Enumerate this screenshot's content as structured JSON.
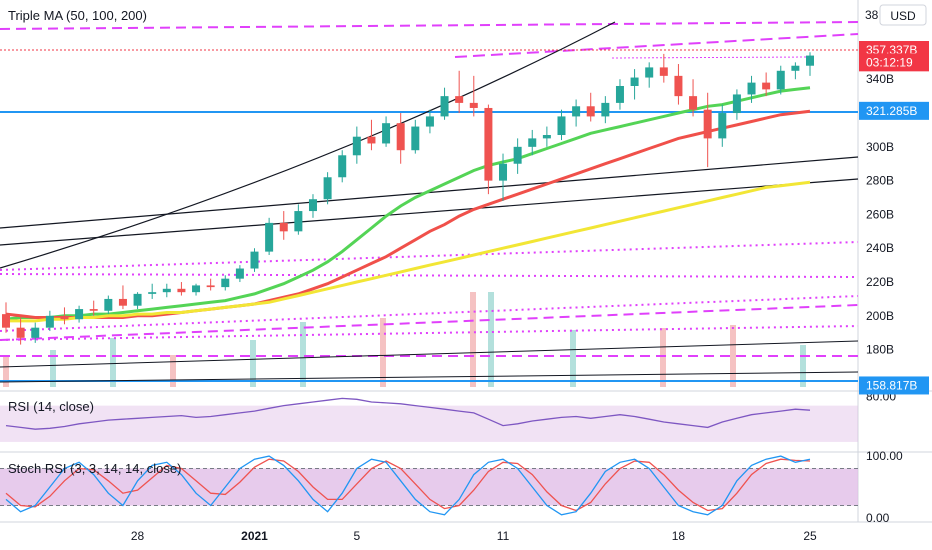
{
  "chart_data": {
    "type": "candlestick",
    "main_pane": {
      "title": "Triple MA (50, 100, 200)",
      "currency": "USD",
      "y_ticks": [
        "340B",
        "300B",
        "280B",
        "260B",
        "240B",
        "220B",
        "200B",
        "180B"
      ],
      "y_tick_values": [
        340,
        300,
        280,
        260,
        240,
        220,
        200,
        180
      ],
      "price_tags": [
        {
          "label": "357.337B",
          "value": 357.3,
          "color": "#f23645"
        },
        {
          "label": "03:12:19",
          "value": 350.0,
          "color": "#f23645"
        },
        {
          "label": "321.285B",
          "value": 321.3,
          "color": "#2196f3"
        },
        {
          "label": "158.817B",
          "value": 158.8,
          "color": "#2196f3"
        }
      ],
      "ylim": [
        157,
        380
      ],
      "top_label_partial": "38",
      "candles": [
        {
          "o": 201,
          "h": 208,
          "l": 190,
          "c": 193
        },
        {
          "o": 193,
          "h": 199,
          "l": 183,
          "c": 187
        },
        {
          "o": 187,
          "h": 196,
          "l": 184,
          "c": 193
        },
        {
          "o": 193,
          "h": 203,
          "l": 191,
          "c": 200
        },
        {
          "o": 200,
          "h": 205,
          "l": 195,
          "c": 198
        },
        {
          "o": 198,
          "h": 206,
          "l": 196,
          "c": 204
        },
        {
          "o": 204,
          "h": 209,
          "l": 200,
          "c": 203
        },
        {
          "o": 203,
          "h": 212,
          "l": 201,
          "c": 210
        },
        {
          "o": 210,
          "h": 218,
          "l": 204,
          "c": 206
        },
        {
          "o": 206,
          "h": 214,
          "l": 204,
          "c": 213
        },
        {
          "o": 213,
          "h": 219,
          "l": 210,
          "c": 214
        },
        {
          "o": 214,
          "h": 219,
          "l": 211,
          "c": 216
        },
        {
          "o": 216,
          "h": 220,
          "l": 212,
          "c": 214
        },
        {
          "o": 214,
          "h": 219,
          "l": 212,
          "c": 218
        },
        {
          "o": 218,
          "h": 222,
          "l": 215,
          "c": 217
        },
        {
          "o": 217,
          "h": 224,
          "l": 215,
          "c": 222
        },
        {
          "o": 222,
          "h": 230,
          "l": 220,
          "c": 228
        },
        {
          "o": 228,
          "h": 240,
          "l": 226,
          "c": 238
        },
        {
          "o": 238,
          "h": 258,
          "l": 236,
          "c": 255
        },
        {
          "o": 255,
          "h": 262,
          "l": 245,
          "c": 250
        },
        {
          "o": 250,
          "h": 266,
          "l": 248,
          "c": 262
        },
        {
          "o": 262,
          "h": 272,
          "l": 258,
          "c": 269
        },
        {
          "o": 269,
          "h": 285,
          "l": 266,
          "c": 282
        },
        {
          "o": 282,
          "h": 298,
          "l": 279,
          "c": 295
        },
        {
          "o": 295,
          "h": 312,
          "l": 290,
          "c": 306
        },
        {
          "o": 306,
          "h": 316,
          "l": 298,
          "c": 302
        },
        {
          "o": 302,
          "h": 318,
          "l": 300,
          "c": 314
        },
        {
          "o": 314,
          "h": 320,
          "l": 290,
          "c": 298
        },
        {
          "o": 298,
          "h": 316,
          "l": 296,
          "c": 312
        },
        {
          "o": 312,
          "h": 322,
          "l": 308,
          "c": 318
        },
        {
          "o": 318,
          "h": 335,
          "l": 316,
          "c": 330
        },
        {
          "o": 330,
          "h": 345,
          "l": 320,
          "c": 326
        },
        {
          "o": 326,
          "h": 342,
          "l": 318,
          "c": 323
        },
        {
          "o": 323,
          "h": 325,
          "l": 272,
          "c": 280
        },
        {
          "o": 280,
          "h": 296,
          "l": 268,
          "c": 290
        },
        {
          "o": 290,
          "h": 305,
          "l": 284,
          "c": 300
        },
        {
          "o": 300,
          "h": 310,
          "l": 295,
          "c": 305
        },
        {
          "o": 305,
          "h": 312,
          "l": 300,
          "c": 307
        },
        {
          "o": 307,
          "h": 322,
          "l": 304,
          "c": 318
        },
        {
          "o": 318,
          "h": 328,
          "l": 312,
          "c": 324
        },
        {
          "o": 324,
          "h": 332,
          "l": 315,
          "c": 318
        },
        {
          "o": 318,
          "h": 330,
          "l": 314,
          "c": 326
        },
        {
          "o": 326,
          "h": 340,
          "l": 322,
          "c": 336
        },
        {
          "o": 336,
          "h": 346,
          "l": 328,
          "c": 341
        },
        {
          "o": 341,
          "h": 350,
          "l": 335,
          "c": 347
        },
        {
          "o": 347,
          "h": 355,
          "l": 338,
          "c": 342
        },
        {
          "o": 342,
          "h": 349,
          "l": 325,
          "c": 330
        },
        {
          "o": 330,
          "h": 340,
          "l": 318,
          "c": 322
        },
        {
          "o": 322,
          "h": 332,
          "l": 288,
          "c": 305
        },
        {
          "o": 305,
          "h": 325,
          "l": 300,
          "c": 320
        },
        {
          "o": 320,
          "h": 334,
          "l": 316,
          "c": 331
        },
        {
          "o": 331,
          "h": 342,
          "l": 326,
          "c": 338
        },
        {
          "o": 338,
          "h": 344,
          "l": 330,
          "c": 334
        },
        {
          "o": 334,
          "h": 348,
          "l": 331,
          "c": 345
        },
        {
          "o": 345,
          "h": 350,
          "l": 340,
          "c": 348
        },
        {
          "o": 348,
          "h": 356,
          "l": 342,
          "c": 354
        }
      ],
      "moving_averages": [
        {
          "name": "MA 50",
          "color": "#54d456",
          "values": [
            198,
            199,
            199,
            199,
            200,
            200,
            201,
            201,
            202,
            203,
            204,
            205,
            206,
            207,
            208,
            209,
            211,
            213,
            216,
            219,
            223,
            227,
            232,
            238,
            245,
            252,
            259,
            265,
            270,
            274,
            278,
            282,
            286,
            289,
            291,
            293,
            296,
            299,
            302,
            305,
            308,
            310,
            312,
            314,
            316,
            318,
            320,
            322,
            324,
            325,
            327,
            329,
            331,
            333,
            334,
            335
          ]
        },
        {
          "name": "MA 100",
          "color": "#f0504a",
          "values": [
            201,
            200,
            199,
            199,
            199,
            199,
            199,
            199,
            199,
            200,
            200,
            201,
            202,
            203,
            204,
            205,
            206,
            207,
            209,
            211,
            213,
            216,
            219,
            223,
            227,
            231,
            235,
            240,
            245,
            250,
            254,
            259,
            263,
            266,
            269,
            272,
            275,
            278,
            281,
            284,
            287,
            290,
            293,
            296,
            299,
            302,
            305,
            307,
            309,
            311,
            313,
            315,
            317,
            319,
            320,
            321
          ]
        },
        {
          "name": "MA 200",
          "color": "#f2e635",
          "values": [
            197,
            197,
            197,
            198,
            198,
            199,
            199,
            200,
            200,
            201,
            201,
            202,
            202,
            203,
            204,
            205,
            206,
            207,
            208,
            210,
            212,
            214,
            216,
            218,
            220,
            222,
            224,
            226,
            228,
            230,
            232,
            234,
            236,
            238,
            240,
            242,
            244,
            246,
            248,
            250,
            252,
            254,
            256,
            258,
            260,
            262,
            264,
            266,
            268,
            270,
            272,
            274,
            276,
            277,
            278,
            279
          ]
        }
      ]
    },
    "rsi_pane": {
      "title": "RSI (14, close)",
      "y_ticks": [
        "80.00"
      ],
      "y_tick_values": [
        80
      ],
      "ylim": [
        20,
        85
      ],
      "band": [
        30,
        70
      ],
      "values": [
        48,
        46,
        44,
        45,
        47,
        50,
        52,
        54,
        55,
        56,
        57,
        58,
        59,
        57,
        58,
        60,
        62,
        64,
        67,
        70,
        72,
        74,
        76,
        78,
        77,
        74,
        73,
        72,
        70,
        68,
        66,
        64,
        62,
        55,
        48,
        50,
        53,
        55,
        57,
        58,
        56,
        58,
        60,
        58,
        55,
        52,
        50,
        48,
        46,
        52,
        56,
        60,
        62,
        64,
        66,
        65
      ]
    },
    "stoch_pane": {
      "title": "Stoch RSI (3, 3, 14, 14, close)",
      "y_ticks": [
        "100.00",
        "0.00"
      ],
      "y_tick_values": [
        100,
        0
      ],
      "ylim": [
        -5,
        105
      ],
      "band": [
        20,
        80
      ],
      "k": [
        30,
        10,
        20,
        50,
        80,
        90,
        70,
        40,
        20,
        60,
        85,
        90,
        70,
        40,
        20,
        50,
        80,
        95,
        100,
        85,
        60,
        30,
        10,
        40,
        80,
        95,
        90,
        60,
        30,
        10,
        5,
        30,
        70,
        90,
        95,
        80,
        50,
        20,
        5,
        10,
        40,
        75,
        90,
        95,
        80,
        50,
        20,
        10,
        5,
        20,
        60,
        85,
        95,
        100,
        90,
        95
      ],
      "d": [
        40,
        20,
        18,
        35,
        60,
        80,
        78,
        60,
        40,
        45,
        65,
        85,
        80,
        60,
        40,
        38,
        58,
        82,
        95,
        92,
        75,
        50,
        30,
        30,
        55,
        80,
        92,
        80,
        55,
        30,
        15,
        20,
        45,
        75,
        90,
        88,
        70,
        42,
        20,
        12,
        25,
        55,
        80,
        92,
        90,
        70,
        45,
        25,
        12,
        15,
        40,
        70,
        88,
        95,
        93,
        92
      ]
    },
    "x_ticks": [
      {
        "label": "28",
        "index": 9
      },
      {
        "label": "2021",
        "index": 17
      },
      {
        "label": "5",
        "index": 24
      },
      {
        "label": "11",
        "index": 34
      },
      {
        "label": "18",
        "index": 46
      },
      {
        "label": "25",
        "index": 55
      }
    ],
    "colors": {
      "up": "#26a69a",
      "down": "#ef5350",
      "trendline": "#e040fb",
      "level": "#2196f3",
      "rsi": "#7e57c2",
      "stoch_k": "#2196f3",
      "stoch_d": "#ef5350"
    }
  }
}
